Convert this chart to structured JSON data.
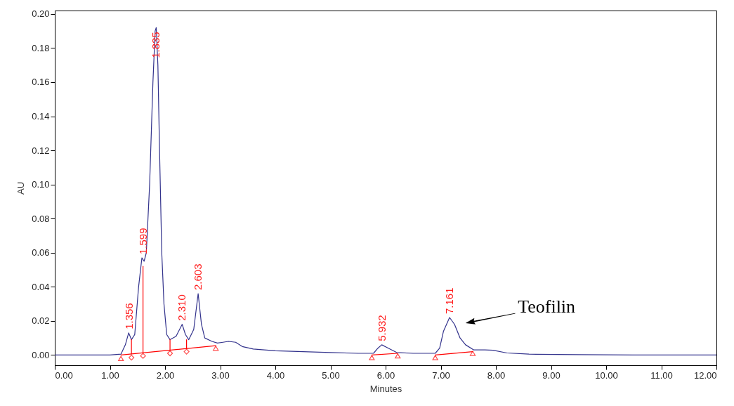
{
  "chart_data": {
    "type": "line",
    "xlabel": "Minutes",
    "ylabel": "AU",
    "xlim": [
      0,
      12
    ],
    "ylim": [
      -0.006,
      0.202
    ],
    "xticks": [
      {
        "value": 0,
        "label": "0.00"
      },
      {
        "value": 1,
        "label": "1.00"
      },
      {
        "value": 2,
        "label": "2.00"
      },
      {
        "value": 3,
        "label": "3.00"
      },
      {
        "value": 4,
        "label": "4.00"
      },
      {
        "value": 5,
        "label": "5.00"
      },
      {
        "value": 6,
        "label": "6.00"
      },
      {
        "value": 7,
        "label": "7.00"
      },
      {
        "value": 8,
        "label": "8.00"
      },
      {
        "value": 9,
        "label": "9.00"
      },
      {
        "value": 10,
        "label": "10.00"
      },
      {
        "value": 11,
        "label": "11.00"
      },
      {
        "value": 12,
        "label": "12.00"
      }
    ],
    "yticks": [
      {
        "value": 0,
        "label": "0.00"
      },
      {
        "value": 0.02,
        "label": "0.02"
      },
      {
        "value": 0.04,
        "label": "0.04"
      },
      {
        "value": 0.06,
        "label": "0.06"
      },
      {
        "value": 0.08,
        "label": "0.08"
      },
      {
        "value": 0.1,
        "label": "0.10"
      },
      {
        "value": 0.12,
        "label": "0.12"
      },
      {
        "value": 0.14,
        "label": "0.14"
      },
      {
        "value": 0.16,
        "label": "0.16"
      },
      {
        "value": 0.18,
        "label": "0.18"
      },
      {
        "value": 0.2,
        "label": "0.20"
      }
    ],
    "series": [
      {
        "color": "#32328c",
        "x": [
          0,
          1.0,
          1.2,
          1.28,
          1.34,
          1.39,
          1.45,
          1.52,
          1.58,
          1.62,
          1.66,
          1.72,
          1.78,
          1.82,
          1.84,
          1.87,
          1.9,
          1.94,
          1.98,
          2.03,
          2.09,
          2.2,
          2.31,
          2.37,
          2.43,
          2.52,
          2.6,
          2.66,
          2.72,
          2.85,
          2.95,
          3.05,
          3.15,
          3.28,
          3.4,
          3.6,
          4.0,
          4.5,
          5.0,
          5.5,
          5.78,
          5.86,
          5.93,
          6.05,
          6.2,
          6.5,
          6.9,
          6.98,
          7.05,
          7.16,
          7.25,
          7.35,
          7.45,
          7.6,
          7.8,
          7.95,
          8.2,
          8.6,
          9.5,
          10.5,
          12
        ],
        "values": [
          0,
          0,
          0.0005,
          0.006,
          0.013,
          0.009,
          0.012,
          0.04,
          0.057,
          0.055,
          0.06,
          0.1,
          0.16,
          0.19,
          0.192,
          0.17,
          0.12,
          0.06,
          0.03,
          0.012,
          0.009,
          0.011,
          0.018,
          0.012,
          0.009,
          0.015,
          0.036,
          0.018,
          0.01,
          0.008,
          0.007,
          0.0075,
          0.008,
          0.0075,
          0.005,
          0.0035,
          0.0025,
          0.002,
          0.0015,
          0.001,
          0.001,
          0.004,
          0.006,
          0.004,
          0.0015,
          0.001,
          0.001,
          0.004,
          0.014,
          0.022,
          0.018,
          0.01,
          0.006,
          0.003,
          0.003,
          0.0028,
          0.0012,
          0.0005,
          0.0002,
          0,
          0
        ]
      },
      {
        "type": "line",
        "color": "#ff0000",
        "x": [
          1.2,
          2.92
        ],
        "values": [
          0,
          0.0055
        ]
      },
      {
        "type": "line",
        "color": "#ff0000",
        "x": [
          5.75,
          6.22
        ],
        "values": [
          0,
          0.001
        ]
      },
      {
        "type": "line",
        "color": "#ff0000",
        "x": [
          6.9,
          7.58
        ],
        "values": [
          0,
          0.002
        ]
      },
      {
        "type": "line",
        "color": "#ff0000",
        "x": [
          1.39,
          1.39
        ],
        "values": [
          0.0006,
          0.009
        ]
      },
      {
        "type": "line",
        "color": "#ff0000",
        "x": [
          1.6,
          1.6
        ],
        "values": [
          0.0013,
          0.052
        ]
      },
      {
        "type": "line",
        "color": "#ff0000",
        "x": [
          2.09,
          2.09
        ],
        "values": [
          0.0028,
          0.009
        ]
      },
      {
        "type": "line",
        "color": "#ff0000",
        "x": [
          2.39,
          2.39
        ],
        "values": [
          0.0038,
          0.009
        ]
      },
      {
        "type": "scatter",
        "color": "#ff0000",
        "marker": "triangle",
        "x": [
          1.2,
          2.92,
          5.75,
          6.22,
          6.9,
          7.58
        ],
        "values": [
          -0.002,
          0.004,
          -0.0015,
          -0.0005,
          -0.0015,
          0.001
        ]
      },
      {
        "type": "scatter",
        "color": "#ff0000",
        "marker": "diamond",
        "x": [
          1.39,
          1.6,
          2.09,
          2.39
        ],
        "values": [
          -0.0015,
          -0.0005,
          0.001,
          0.002
        ]
      }
    ],
    "annotations": [
      {
        "text": "1.356",
        "x": 1.356,
        "y": 0.013
      },
      {
        "text": "1.599",
        "x": 1.599,
        "y": 0.057
      },
      {
        "text": "1.835",
        "x": 1.835,
        "y": 0.192
      },
      {
        "text": "2.310",
        "x": 2.31,
        "y": 0.018
      },
      {
        "text": "2.603",
        "x": 2.603,
        "y": 0.036
      },
      {
        "text": "5.932",
        "x": 5.932,
        "y": 0.006
      },
      {
        "text": "7.161",
        "x": 7.161,
        "y": 0.022
      },
      "Teofilin"
    ]
  }
}
